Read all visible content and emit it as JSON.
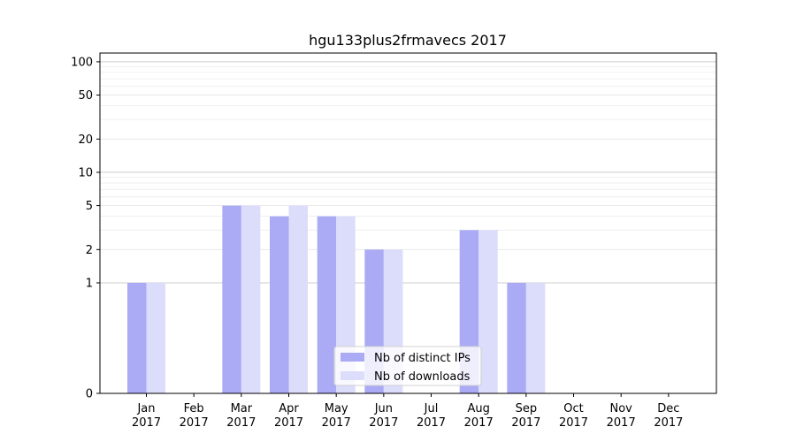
{
  "chart_data": {
    "type": "bar",
    "title": "hgu133plus2frmavecs 2017",
    "xlabel": "",
    "ylabel": "",
    "y_scale": "symlog",
    "ylim": [
      0,
      120
    ],
    "yticks": [
      0,
      1,
      2,
      5,
      10,
      20,
      50,
      100
    ],
    "categories": [
      [
        "Jan",
        "2017"
      ],
      [
        "Feb",
        "2017"
      ],
      [
        "Mar",
        "2017"
      ],
      [
        "Apr",
        "2017"
      ],
      [
        "May",
        "2017"
      ],
      [
        "Jun",
        "2017"
      ],
      [
        "Jul",
        "2017"
      ],
      [
        "Aug",
        "2017"
      ],
      [
        "Sep",
        "2017"
      ],
      [
        "Oct",
        "2017"
      ],
      [
        "Nov",
        "2017"
      ],
      [
        "Dec",
        "2017"
      ]
    ],
    "series": [
      {
        "name": "Nb of distinct IPs",
        "color": "#aaaaf5",
        "values": [
          1,
          0,
          5,
          4,
          4,
          2,
          0,
          3,
          1,
          0,
          0,
          0
        ]
      },
      {
        "name": "Nb of downloads",
        "color": "#dcdcfb",
        "values": [
          1,
          0,
          5,
          5,
          4,
          2,
          0,
          3,
          1,
          0,
          0,
          0
        ]
      }
    ],
    "grid": true,
    "legend_position": "bottom-center"
  }
}
